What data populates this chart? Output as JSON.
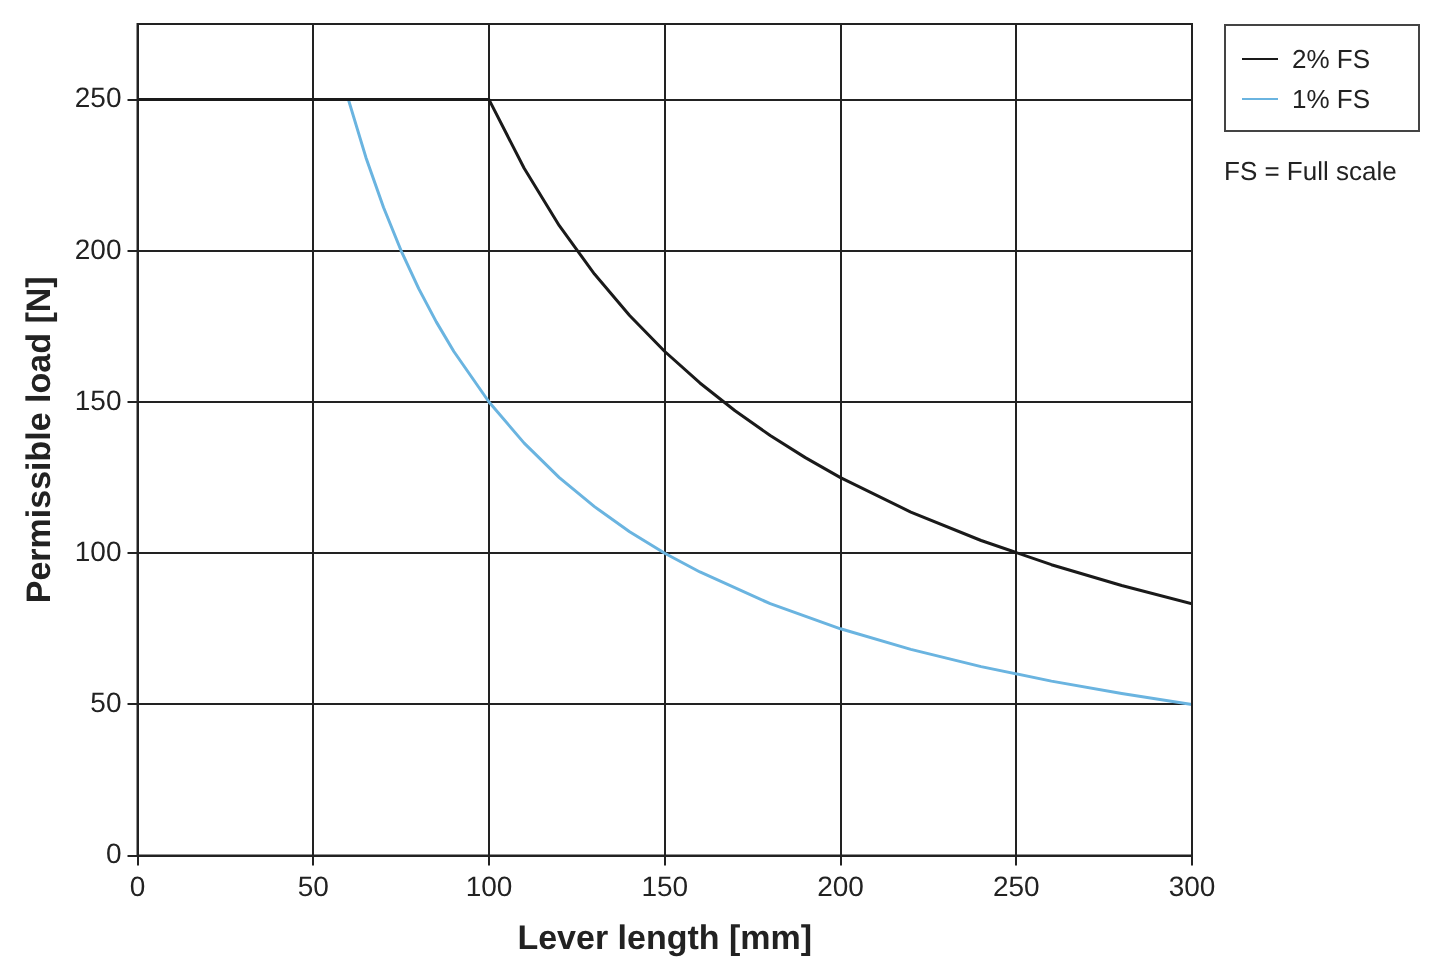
{
  "chart_data": {
    "type": "line",
    "xlabel": "Lever length [mm]",
    "ylabel": "Permissible load [N]",
    "xlim": [
      0,
      300
    ],
    "xticks": [
      0,
      50,
      100,
      150,
      200,
      250,
      300
    ],
    "ylim": [
      0,
      275
    ],
    "yticks": [
      0,
      50,
      100,
      150,
      200,
      250
    ],
    "grid": true,
    "legend": "top right",
    "marker": "none",
    "line_style": "solid",
    "annotations": [
      "FS = Full scale"
    ],
    "series": [
      {
        "name": "2% FS",
        "color": "#1a1a1a",
        "x": [
          0,
          100,
          110,
          120,
          130,
          140,
          150,
          160,
          170,
          180,
          190,
          200,
          220,
          240,
          260,
          280,
          300
        ],
        "values": [
          250,
          250,
          227.3,
          208.3,
          192.3,
          178.6,
          166.7,
          156.3,
          147.1,
          138.9,
          131.6,
          125,
          113.6,
          104.2,
          96.2,
          89.3,
          83.3
        ]
      },
      {
        "name": "1% FS",
        "color": "#6ab4e0",
        "x": [
          0,
          60,
          65,
          70,
          75,
          80,
          85,
          90,
          100,
          110,
          120,
          130,
          140,
          150,
          160,
          180,
          200,
          220,
          240,
          260,
          280,
          300
        ],
        "values": [
          250,
          250,
          230.8,
          214.3,
          200,
          187.5,
          176.5,
          166.7,
          150,
          136.4,
          125,
          115.4,
          107.1,
          100,
          93.8,
          83.3,
          75,
          68.2,
          62.5,
          57.7,
          53.6,
          50
        ]
      }
    ]
  }
}
